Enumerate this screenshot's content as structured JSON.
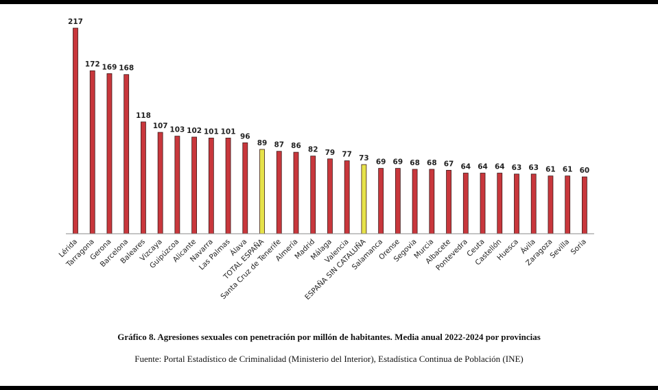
{
  "chart_data": {
    "type": "bar",
    "categories": [
      "Lérida",
      "Tarragona",
      "Gerona",
      "Barcelona",
      "Baleares",
      "Vizcaya",
      "Guipúzcoa",
      "Alicante",
      "Navarra",
      "Las Palmas",
      "Álava",
      "TOTAL ESPAÑA",
      "Santa Cruz de Tenerife",
      "Almería",
      "Madrid",
      "Málaga",
      "Valencia",
      "ESPAÑA SIN CATALUÑA",
      "Salamanca",
      "Orense",
      "Segovia",
      "Murcia",
      "Albacete",
      "Pontevedra",
      "Ceuta",
      "Castellón",
      "Huesca",
      "Ávila",
      "Zaragoza",
      "Sevilla",
      "Soria"
    ],
    "values": [
      217,
      172,
      169,
      168,
      118,
      107,
      103,
      102,
      101,
      101,
      96,
      89,
      87,
      86,
      82,
      79,
      77,
      73,
      69,
      69,
      68,
      68,
      67,
      64,
      64,
      64,
      63,
      63,
      61,
      61,
      60
    ],
    "highlighted": [
      "TOTAL ESPAÑA",
      "ESPAÑA SIN CATALUÑA"
    ],
    "colors": {
      "bar": "#c8373c",
      "highlight": "#e6e24a",
      "outline": "#3a1a1a"
    },
    "ylim": [
      0,
      217
    ],
    "grid": false,
    "xlabel": "",
    "ylabel": ""
  },
  "caption": {
    "title": "Gráfico 8. Agresiones sexuales con penetración por millón de habitantes. Media anual 2022-2024 por provincias",
    "source": "Fuente: Portal Estadístico de Criminalidad (Ministerio del Interior), Estadística Continua de Población (INE)"
  }
}
